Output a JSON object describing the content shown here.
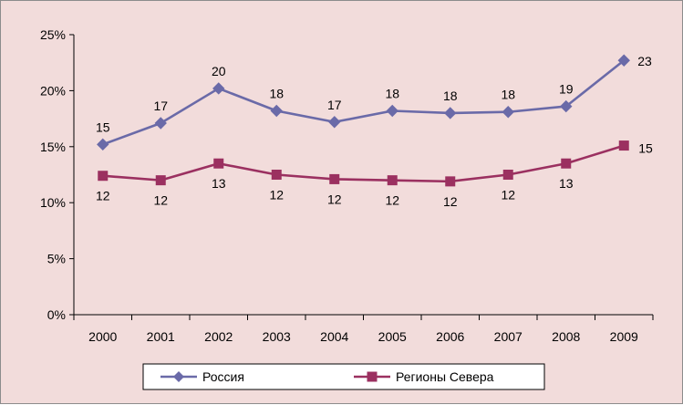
{
  "chart_data": {
    "type": "line",
    "categories": [
      "2000",
      "2001",
      "2002",
      "2003",
      "2004",
      "2005",
      "2006",
      "2007",
      "2008",
      "2009"
    ],
    "y_tick_labels": [
      "0%",
      "5%",
      "10%",
      "15%",
      "20%",
      "25%"
    ],
    "ylim": [
      0,
      25
    ],
    "grid": false,
    "legend_position": "bottom",
    "series": [
      {
        "name": "Россия",
        "color": "#6a6aa8",
        "marker": "diamond",
        "values": [
          15.2,
          17.1,
          20.2,
          18.2,
          17.2,
          18.2,
          18.0,
          18.1,
          18.6,
          22.7
        ],
        "labels": [
          "15",
          "17",
          "20",
          "18",
          "17",
          "18",
          "18",
          "18",
          "19",
          "23"
        ]
      },
      {
        "name": "Регионы Севера",
        "color": "#9b3060",
        "marker": "square",
        "values": [
          12.4,
          12.0,
          13.5,
          12.5,
          12.1,
          12.0,
          11.9,
          12.5,
          13.5,
          15.1
        ],
        "labels": [
          "12",
          "12",
          "13",
          "12",
          "12",
          "12",
          "12",
          "12",
          "13",
          "15"
        ]
      }
    ]
  }
}
